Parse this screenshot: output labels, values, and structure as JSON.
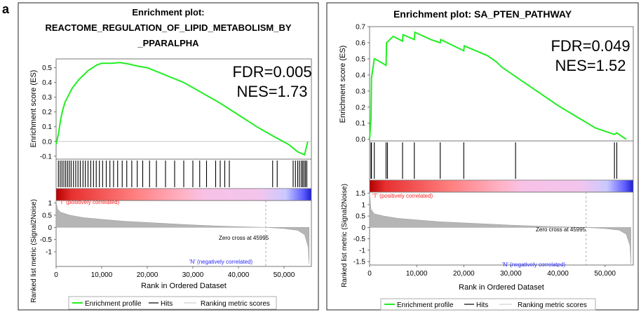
{
  "figure_label": "a",
  "colors": {
    "enrichment_line": "#22ee22",
    "hits": "#000000",
    "ranking_fill": "#b5b5b5",
    "positive_label": "#ff2222",
    "negative_label": "#2a2aff",
    "zero_cross_line": "#999999"
  },
  "chart_data": [
    {
      "type": "line",
      "title_line1": "Enrichment plot:",
      "title_line2": "REACTOME_REGULATION_OF_LIPID_METABOLISM_BY",
      "title_line3": "_PPARALPHA",
      "annotation_fdr": "FDR=0.005",
      "annotation_nes": "NES=1.73",
      "es_ylabel": "Enrichment score (ES)",
      "es_ylim": [
        -0.12,
        0.56
      ],
      "es_yticks": [
        "0.5",
        "0.4",
        "0.3",
        "0.2",
        "0.1",
        "0.0",
        "-0.1"
      ],
      "es_ytick_values": [
        0.5,
        0.4,
        0.3,
        0.2,
        0.1,
        0.0,
        -0.1
      ],
      "xlim": [
        0,
        56000
      ],
      "xticks": [
        "0",
        "10,000",
        "20,000",
        "30,000",
        "40,000",
        "50,000"
      ],
      "xtick_values": [
        0,
        10000,
        20000,
        30000,
        40000,
        50000
      ],
      "xlabel": "Rank in Ordered Dataset",
      "rank_ylabel": "Ranked list metric (Signal2Noise)",
      "rank_ylim": [
        -1.6,
        1.1
      ],
      "rank_yticks": [
        "1",
        "0.5",
        "0",
        "-0.5",
        "-1"
      ],
      "rank_ytick_values": [
        1,
        0.5,
        0,
        -0.5,
        -1
      ],
      "positive_label": "'T' (positively correlated)",
      "negative_label": "'N' (negatively correlated)",
      "zero_cross_label": "Zero cross at 45995",
      "zero_cross_x": 45995,
      "es_x": [
        0,
        500,
        1000,
        1500,
        2000,
        2500,
        3000,
        3500,
        4000,
        5000,
        6000,
        7000,
        8000,
        9000,
        10000,
        12000,
        14000,
        16000,
        18000,
        20000,
        24000,
        28000,
        32000,
        36000,
        40000,
        44000,
        48000,
        51000,
        53000,
        54500,
        55200
      ],
      "es_y": [
        -0.02,
        0.05,
        0.15,
        0.22,
        0.27,
        0.3,
        0.33,
        0.36,
        0.38,
        0.42,
        0.45,
        0.48,
        0.5,
        0.52,
        0.53,
        0.53,
        0.535,
        0.525,
        0.51,
        0.5,
        0.45,
        0.4,
        0.33,
        0.26,
        0.18,
        0.1,
        0.03,
        -0.02,
        -0.07,
        -0.09,
        0.0
      ],
      "hits": [
        500,
        900,
        1300,
        1700,
        2100,
        2500,
        2900,
        3300,
        3800,
        4300,
        4800,
        5300,
        5900,
        6400,
        7000,
        7600,
        8200,
        8800,
        9500,
        10200,
        11000,
        11800,
        12600,
        13500,
        14500,
        15500,
        16600,
        17800,
        19000,
        20500,
        22000,
        24000,
        26000,
        28000,
        30000,
        31500,
        33000,
        35000,
        36000,
        37000,
        38000,
        47500,
        48500,
        52000,
        52500,
        53000,
        53400,
        53800,
        54100,
        54400,
        54700,
        55000
      ],
      "rank_x": [
        0,
        300,
        1000,
        3000,
        6000,
        10000,
        15000,
        20000,
        25000,
        30000,
        35000,
        40000,
        45995,
        50000,
        53000,
        54500,
        55300,
        55500
      ],
      "rank_y": [
        1.05,
        0.75,
        0.62,
        0.5,
        0.4,
        0.33,
        0.25,
        0.2,
        0.15,
        0.1,
        0.06,
        0.03,
        0.0,
        -0.05,
        -0.12,
        -0.3,
        -0.8,
        -1.5
      ]
    },
    {
      "type": "line",
      "title_line1": "Enrichment plot: SA_PTEN_PATHWAY",
      "annotation_fdr": "FDR=0.049",
      "annotation_nes": "NES=1.52",
      "es_ylabel": "Enrichment score (ES)",
      "es_ylim": [
        -0.01,
        0.7
      ],
      "es_yticks": [
        "0.7",
        "0.6",
        "0.5",
        "0.4",
        "0.3",
        "0.2",
        "0.1",
        "0.0"
      ],
      "es_ytick_values": [
        0.7,
        0.6,
        0.5,
        0.4,
        0.3,
        0.2,
        0.1,
        0.0
      ],
      "xlim": [
        0,
        56000
      ],
      "xticks": [
        "0",
        "10,000",
        "20,000",
        "30,000",
        "40,000",
        "50,000"
      ],
      "xtick_values": [
        0,
        10000,
        20000,
        30000,
        40000,
        50000
      ],
      "xlabel": "Rank in Ordered Dataset",
      "rank_ylabel": "Ranked list metric (Signal2Noise)",
      "rank_ylim": [
        -1.65,
        1.55
      ],
      "rank_yticks": [
        "1.5",
        "1",
        "0.5",
        "0",
        "-0.5",
        "-1",
        "-1.5"
      ],
      "rank_ytick_values": [
        1.5,
        1,
        0.5,
        0,
        -0.5,
        -1,
        -1.5
      ],
      "positive_label": "'T' (positively correlated)",
      "negative_label": "'N' (negatively correlated)",
      "zero_cross_label": "Zero cross at 45995",
      "zero_cross_x": 45995,
      "es_x": [
        0,
        300,
        400,
        1000,
        1100,
        3500,
        3600,
        5000,
        7000,
        7100,
        9500,
        9600,
        13000,
        15000,
        15100,
        20000,
        20100,
        25000,
        27000,
        28000,
        32000,
        36000,
        40000,
        44000,
        48000,
        52000,
        52500,
        53000,
        54500
      ],
      "es_y": [
        0.0,
        0.13,
        0.38,
        0.5,
        0.5,
        0.46,
        0.6,
        0.64,
        0.61,
        0.65,
        0.62,
        0.665,
        0.62,
        0.6,
        0.62,
        0.55,
        0.58,
        0.52,
        0.48,
        0.45,
        0.37,
        0.29,
        0.21,
        0.14,
        0.07,
        0.03,
        0.04,
        0.03,
        0.0
      ],
      "hits": [
        300,
        400,
        1000,
        3500,
        3800,
        7000,
        9500,
        15000,
        20000,
        31000,
        52000,
        52500
      ],
      "rank_x": [
        0,
        300,
        1000,
        3000,
        6000,
        10000,
        15000,
        20000,
        25000,
        30000,
        35000,
        40000,
        45995,
        50000,
        53000,
        54500,
        55300,
        55500
      ],
      "rank_y": [
        1.5,
        0.8,
        0.6,
        0.5,
        0.4,
        0.33,
        0.25,
        0.2,
        0.15,
        0.1,
        0.06,
        0.03,
        0.0,
        -0.05,
        -0.12,
        -0.3,
        -0.8,
        -1.6
      ]
    }
  ],
  "legend": {
    "enrichment_profile": "Enrichment profile",
    "hits": "Hits",
    "ranking_metric": "Ranking metric scores"
  }
}
